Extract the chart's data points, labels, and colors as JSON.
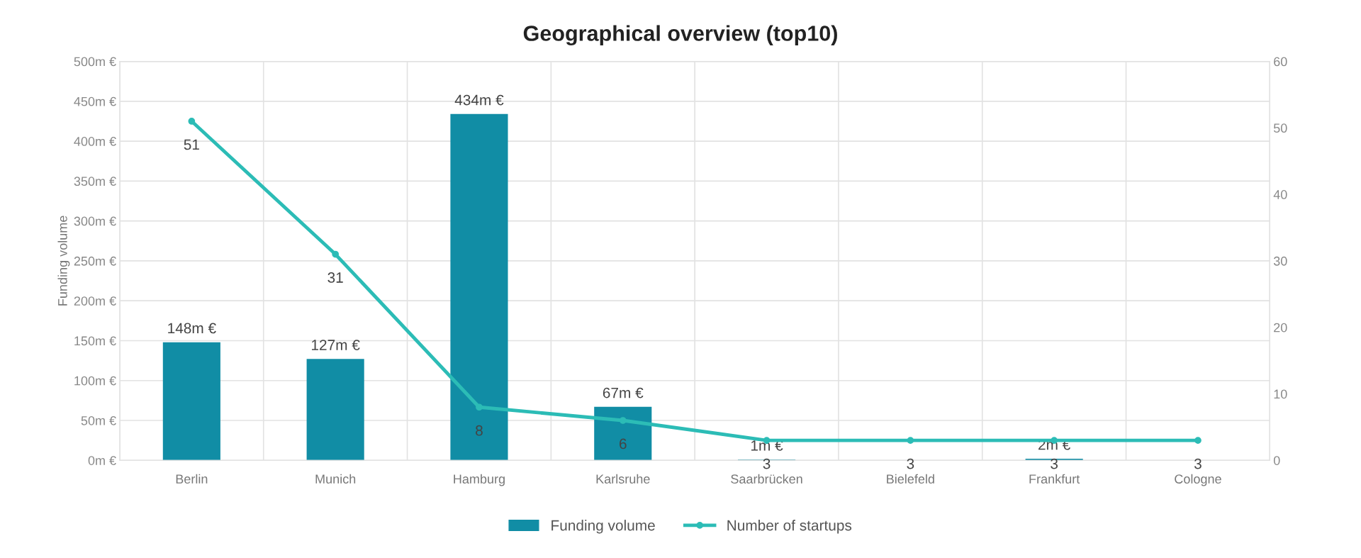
{
  "chart_data": {
    "type": "bar",
    "title": "Geographical overview (top10)",
    "ylabel": "Funding volume",
    "categories": [
      "Berlin",
      "Munich",
      "Hamburg",
      "Karlsruhe",
      "Saarbrücken",
      "Bielefeld",
      "Frankfurt",
      "Cologne"
    ],
    "series": [
      {
        "name": "Funding volume",
        "color": "#118da5",
        "values": [
          148,
          127,
          434,
          67,
          1,
          null,
          2,
          null
        ],
        "value_labels": [
          "148m €",
          "127m €",
          "434m €",
          "67m €",
          "1m €",
          null,
          "2m €",
          null
        ]
      },
      {
        "name": "Number of startups",
        "type": "line",
        "axis": "y2",
        "color": "#2cbcb6",
        "values": [
          51,
          31,
          8,
          6,
          3,
          3,
          3,
          3
        ],
        "data_labels": true
      }
    ],
    "ylim": [
      0,
      500
    ],
    "yticks": [
      {
        "value": 0,
        "label": "0m €"
      },
      {
        "value": 50,
        "label": "50m €"
      },
      {
        "value": 100,
        "label": "100m €"
      },
      {
        "value": 150,
        "label": "150m €"
      },
      {
        "value": 200,
        "label": "200m €"
      },
      {
        "value": 250,
        "label": "250m €"
      },
      {
        "value": 300,
        "label": "300m €"
      },
      {
        "value": 350,
        "label": "350m €"
      },
      {
        "value": 400,
        "label": "400m €"
      },
      {
        "value": 450,
        "label": "450m €"
      },
      {
        "value": 500,
        "label": "500m €"
      }
    ],
    "y2lim": [
      0,
      60
    ],
    "y2ticks": [
      0,
      10,
      20,
      30,
      40,
      50,
      60
    ],
    "grid": true,
    "legend": "bottom",
    "marker": "circle"
  }
}
